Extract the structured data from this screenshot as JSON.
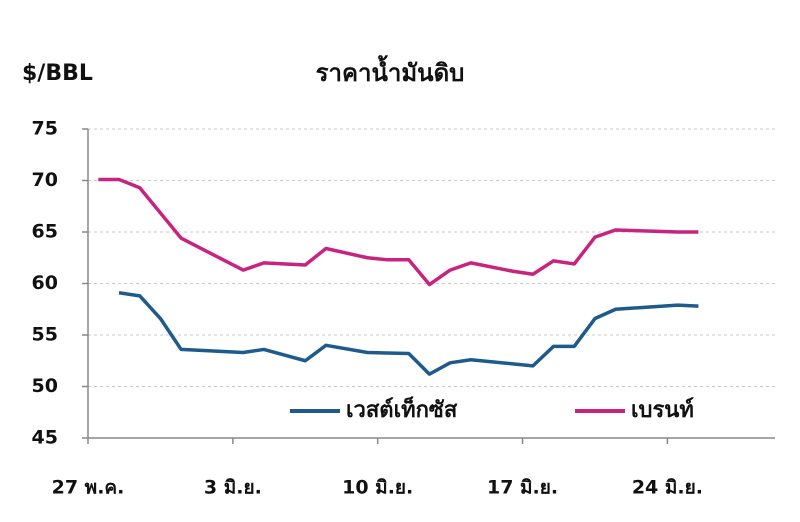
{
  "chart_data": {
    "type": "line",
    "title": "ราคาน้ำมันดิบ",
    "y_label": "$/BBL",
    "xlim": [
      -0.5,
      32.7
    ],
    "xticks": [
      {
        "value": -0.5,
        "label": "27 พ.ค."
      },
      {
        "value": 6.5,
        "label": "3 มิ.ย."
      },
      {
        "value": 13.5,
        "label": "10 มิ.ย."
      },
      {
        "value": 20.5,
        "label": "17 มิ.ย."
      },
      {
        "value": 27.5,
        "label": "24 มิ.ย."
      }
    ],
    "ylim": [
      45,
      75
    ],
    "yticks": [
      45,
      50,
      55,
      60,
      65,
      70,
      75
    ],
    "grid": true,
    "legend": "bottom",
    "series": [
      {
        "name": "เวสต์เท็กซัส",
        "color": "#1f5a8c",
        "x": [
          1,
          2,
          3,
          4,
          7,
          8,
          10,
          11,
          13,
          15,
          16,
          17,
          18,
          21,
          22,
          23,
          24,
          25,
          28,
          29
        ],
        "values": [
          59.1,
          58.8,
          56.6,
          53.6,
          53.3,
          53.6,
          52.5,
          54.0,
          53.3,
          53.2,
          51.2,
          52.3,
          52.6,
          52.0,
          53.9,
          53.9,
          56.6,
          57.5,
          57.9,
          57.8
        ]
      },
      {
        "name": "เบรนท์",
        "color": "#c8237f",
        "x": [
          0,
          1,
          2,
          4,
          7,
          8,
          10,
          11,
          13,
          14,
          15,
          16,
          17,
          18,
          20,
          21,
          22,
          23,
          24,
          25,
          28,
          29
        ],
        "values": [
          70.1,
          70.1,
          69.3,
          64.4,
          61.3,
          62.0,
          61.8,
          63.4,
          62.5,
          62.3,
          62.3,
          59.9,
          61.3,
          62.0,
          61.2,
          60.9,
          62.2,
          61.9,
          64.5,
          65.2,
          65.0,
          65.0
        ]
      }
    ]
  }
}
